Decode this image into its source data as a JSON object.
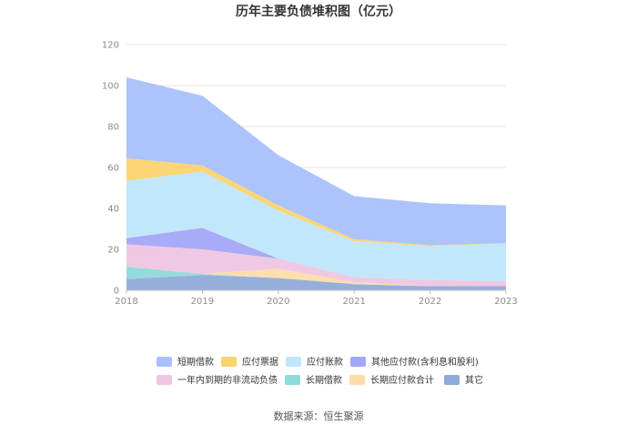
{
  "chart_data": {
    "type": "area",
    "stacked": true,
    "title": "历年主要负债堆积图（亿元）",
    "x": [
      "2018",
      "2019",
      "2020",
      "2021",
      "2022",
      "2023"
    ],
    "ylim": [
      0,
      120
    ],
    "yticks": [
      0,
      20,
      40,
      60,
      80,
      100,
      120
    ],
    "grid": "horizontal",
    "legend_position": "bottom",
    "series": [
      {
        "name": "其它",
        "color": "#8fabd8",
        "values": [
          5.5,
          7.5,
          6,
          3,
          2,
          2
        ]
      },
      {
        "name": "长期借款",
        "color": "#8fd9d9",
        "values": [
          6,
          0.5,
          0,
          0,
          0,
          0
        ]
      },
      {
        "name": "长期应付款合计",
        "color": "#fddca8",
        "values": [
          0,
          0,
          4.5,
          1,
          0,
          0
        ]
      },
      {
        "name": "一年内到期的非流动负债",
        "color": "#eec6e2",
        "values": [
          11,
          12,
          5,
          2.5,
          3,
          2.5
        ]
      },
      {
        "name": "其他应付款(含利息和股利)",
        "color": "#a3a7f7",
        "values": [
          3,
          10.5,
          0,
          0,
          0,
          0
        ]
      },
      {
        "name": "应付账款",
        "color": "#bfe6fb",
        "values": [
          28,
          27.5,
          23.5,
          17.5,
          16.5,
          18.5
        ]
      },
      {
        "name": "应付票据",
        "color": "#fbd36f",
        "values": [
          11,
          3,
          2.5,
          1,
          0.5,
          0
        ]
      },
      {
        "name": "短期借款",
        "color": "#a8c0fb",
        "values": [
          39.5,
          34,
          24.5,
          21,
          20.5,
          18.5
        ]
      }
    ],
    "legend_order": [
      "短期借款",
      "应付票据",
      "应付账款",
      "其他应付款(含利息和股利)",
      "一年内到期的非流动负债",
      "长期借款",
      "长期应付款合计",
      "其它"
    ]
  },
  "source": "数据来源：恒生聚源"
}
